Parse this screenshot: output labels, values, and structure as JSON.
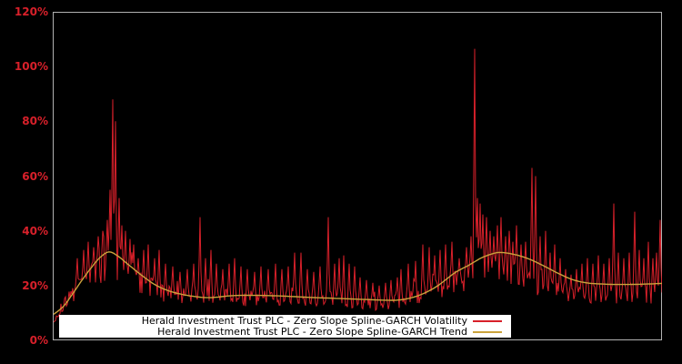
{
  "figure": {
    "background_color": "#000000",
    "frame_color": "#b2b2b2",
    "tick_label_color": "#d8202a"
  },
  "y_axis": {
    "unit": "%",
    "min": 0,
    "max": 120,
    "step": 20,
    "tick_labels_top_down": [
      "120%",
      "100%",
      "80%",
      "60%",
      "40%",
      "20%",
      "0%"
    ]
  },
  "x_axis": {
    "tick_labels": [],
    "note": "no visible x-axis tick labels"
  },
  "legend": {
    "background_color": "#ffffff",
    "text_color": "#000000",
    "entries": [
      {
        "label": "Herald Investment Trust PLC - Zero Slope Spline-GARCH Volatility",
        "color": "#d8202a"
      },
      {
        "label": "Herald Investment Trust PLC - Zero Slope Spline-GARCH Trend",
        "color": "#cba33c"
      }
    ]
  },
  "chart_data": {
    "type": "line",
    "title": "",
    "xlabel": "",
    "ylabel": "",
    "ylim": [
      0,
      120
    ],
    "yticks": [
      0,
      20,
      40,
      60,
      80,
      100,
      120
    ],
    "y_unit": "percent",
    "grid": false,
    "legend_position": "bottom-inside",
    "x_encoding": "fraction 0-1 of the unlabeled time axis",
    "series": [
      {
        "name": "Herald Investment Trust PLC - Zero Slope Spline-GARCH Volatility",
        "color": "#d8202a",
        "style": "noisy",
        "noise_seed": 20,
        "baseline_anchors": [
          [
            0.0,
            6
          ],
          [
            0.006,
            9
          ],
          [
            0.013,
            12
          ],
          [
            0.024,
            15
          ],
          [
            0.034,
            18
          ],
          [
            0.046,
            21
          ],
          [
            0.058,
            23
          ],
          [
            0.07,
            25
          ],
          [
            0.082,
            27
          ],
          [
            0.094,
            29
          ],
          [
            0.106,
            27
          ],
          [
            0.118,
            25
          ],
          [
            0.13,
            23
          ],
          [
            0.142,
            21
          ],
          [
            0.154,
            20
          ],
          [
            0.169,
            18.5
          ],
          [
            0.184,
            17.5
          ],
          [
            0.199,
            17
          ],
          [
            0.218,
            16.5
          ],
          [
            0.241,
            16.5
          ],
          [
            0.263,
            16
          ],
          [
            0.286,
            16
          ],
          [
            0.308,
            15.5
          ],
          [
            0.33,
            15.5
          ],
          [
            0.353,
            15.5
          ],
          [
            0.375,
            15.5
          ],
          [
            0.398,
            16
          ],
          [
            0.42,
            15.5
          ],
          [
            0.442,
            15.5
          ],
          [
            0.465,
            15
          ],
          [
            0.487,
            14.5
          ],
          [
            0.51,
            14
          ],
          [
            0.532,
            13.5
          ],
          [
            0.555,
            14
          ],
          [
            0.577,
            14.5
          ],
          [
            0.599,
            16
          ],
          [
            0.617,
            17.5
          ],
          [
            0.635,
            19
          ],
          [
            0.653,
            21
          ],
          [
            0.671,
            22
          ],
          [
            0.689,
            25
          ],
          [
            0.707,
            27
          ],
          [
            0.725,
            26
          ],
          [
            0.743,
            25
          ],
          [
            0.761,
            24
          ],
          [
            0.779,
            23
          ],
          [
            0.797,
            21
          ],
          [
            0.815,
            19
          ],
          [
            0.833,
            17.5
          ],
          [
            0.851,
            16.5
          ],
          [
            0.868,
            16.5
          ],
          [
            0.886,
            16.5
          ],
          [
            0.904,
            16.5
          ],
          [
            0.922,
            16.5
          ],
          [
            0.943,
            16.5
          ],
          [
            0.964,
            17
          ],
          [
            0.982,
            17
          ],
          [
            1.0,
            19
          ]
        ],
        "noise_amplitude_anchors": [
          [
            0.0,
            1.5
          ],
          [
            0.024,
            3
          ],
          [
            0.054,
            5
          ],
          [
            0.084,
            6.5
          ],
          [
            0.106,
            6
          ],
          [
            0.129,
            5
          ],
          [
            0.151,
            4.5
          ],
          [
            0.181,
            4
          ],
          [
            0.211,
            3.5
          ],
          [
            0.256,
            3.2
          ],
          [
            0.3,
            3.2
          ],
          [
            0.36,
            3.2
          ],
          [
            0.42,
            3.2
          ],
          [
            0.48,
            3
          ],
          [
            0.54,
            2.8
          ],
          [
            0.584,
            3.2
          ],
          [
            0.629,
            4
          ],
          [
            0.667,
            5
          ],
          [
            0.697,
            6.5
          ],
          [
            0.726,
            6.5
          ],
          [
            0.756,
            6
          ],
          [
            0.786,
            5.5
          ],
          [
            0.816,
            4.5
          ],
          [
            0.846,
            3.5
          ],
          [
            0.883,
            3.5
          ],
          [
            0.921,
            3.5
          ],
          [
            0.958,
            3.5
          ],
          [
            1.0,
            4
          ]
        ],
        "spike_points": [
          [
            0.039,
            30
          ],
          [
            0.049,
            33
          ],
          [
            0.057,
            36
          ],
          [
            0.066,
            34
          ],
          [
            0.073,
            38
          ],
          [
            0.081,
            40
          ],
          [
            0.088,
            44
          ],
          [
            0.093,
            55
          ],
          [
            0.097,
            88
          ],
          [
            0.102,
            80
          ],
          [
            0.108,
            52
          ],
          [
            0.112,
            42
          ],
          [
            0.118,
            40
          ],
          [
            0.126,
            37
          ],
          [
            0.132,
            35
          ],
          [
            0.139,
            30
          ],
          [
            0.148,
            33
          ],
          [
            0.155,
            35
          ],
          [
            0.166,
            30
          ],
          [
            0.173,
            33
          ],
          [
            0.184,
            28
          ],
          [
            0.196,
            27
          ],
          [
            0.208,
            25
          ],
          [
            0.22,
            26
          ],
          [
            0.23,
            28
          ],
          [
            0.241,
            45
          ],
          [
            0.25,
            30
          ],
          [
            0.259,
            33
          ],
          [
            0.268,
            28
          ],
          [
            0.278,
            26
          ],
          [
            0.289,
            28
          ],
          [
            0.297,
            30
          ],
          [
            0.308,
            27
          ],
          [
            0.318,
            26
          ],
          [
            0.33,
            25
          ],
          [
            0.341,
            27
          ],
          [
            0.353,
            26
          ],
          [
            0.365,
            28
          ],
          [
            0.375,
            26
          ],
          [
            0.386,
            27
          ],
          [
            0.396,
            32
          ],
          [
            0.407,
            32
          ],
          [
            0.417,
            26
          ],
          [
            0.428,
            25
          ],
          [
            0.438,
            27
          ],
          [
            0.451,
            45
          ],
          [
            0.462,
            28
          ],
          [
            0.469,
            30
          ],
          [
            0.477,
            31
          ],
          [
            0.486,
            28
          ],
          [
            0.495,
            27
          ],
          [
            0.504,
            23
          ],
          [
            0.514,
            22
          ],
          [
            0.525,
            21
          ],
          [
            0.535,
            20
          ],
          [
            0.546,
            21
          ],
          [
            0.555,
            22
          ],
          [
            0.565,
            23
          ],
          [
            0.571,
            26
          ],
          [
            0.583,
            28
          ],
          [
            0.595,
            29
          ],
          [
            0.607,
            35
          ],
          [
            0.617,
            34
          ],
          [
            0.626,
            31
          ],
          [
            0.635,
            33
          ],
          [
            0.644,
            35
          ],
          [
            0.655,
            36
          ],
          [
            0.667,
            30
          ],
          [
            0.679,
            34
          ],
          [
            0.686,
            38
          ],
          [
            0.692,
            106.5
          ],
          [
            0.697,
            52
          ],
          [
            0.701,
            50
          ],
          [
            0.706,
            46
          ],
          [
            0.712,
            45
          ],
          [
            0.718,
            40
          ],
          [
            0.723,
            38
          ],
          [
            0.729,
            42
          ],
          [
            0.735,
            45
          ],
          [
            0.743,
            38
          ],
          [
            0.749,
            40
          ],
          [
            0.755,
            36
          ],
          [
            0.761,
            42
          ],
          [
            0.768,
            35
          ],
          [
            0.776,
            36
          ],
          [
            0.786,
            63
          ],
          [
            0.792,
            60
          ],
          [
            0.8,
            38
          ],
          [
            0.809,
            40
          ],
          [
            0.816,
            32
          ],
          [
            0.824,
            35
          ],
          [
            0.833,
            30
          ],
          [
            0.842,
            26
          ],
          [
            0.851,
            24
          ],
          [
            0.86,
            26
          ],
          [
            0.868,
            28
          ],
          [
            0.877,
            30
          ],
          [
            0.886,
            28
          ],
          [
            0.895,
            31
          ],
          [
            0.904,
            28
          ],
          [
            0.913,
            30
          ],
          [
            0.921,
            50
          ],
          [
            0.928,
            32
          ],
          [
            0.937,
            30
          ],
          [
            0.946,
            32
          ],
          [
            0.955,
            47
          ],
          [
            0.963,
            33
          ],
          [
            0.97,
            30
          ],
          [
            0.978,
            36
          ],
          [
            0.985,
            30
          ],
          [
            0.991,
            32
          ],
          [
            0.997,
            44
          ]
        ]
      },
      {
        "name": "Herald Investment Trust PLC - Zero Slope Spline-GARCH Trend",
        "color": "#cba33c",
        "style": "smooth",
        "smooth_anchors": [
          [
            0.0,
            9.5
          ],
          [
            0.016,
            12.4
          ],
          [
            0.031,
            16.9
          ],
          [
            0.046,
            21.8
          ],
          [
            0.061,
            26.3
          ],
          [
            0.076,
            30.2
          ],
          [
            0.091,
            32.3
          ],
          [
            0.106,
            30.7
          ],
          [
            0.121,
            28
          ],
          [
            0.136,
            25.3
          ],
          [
            0.151,
            22.7
          ],
          [
            0.166,
            20.4
          ],
          [
            0.184,
            18.5
          ],
          [
            0.203,
            17.2
          ],
          [
            0.226,
            16.2
          ],
          [
            0.256,
            15.6
          ],
          [
            0.3,
            16.4
          ],
          [
            0.36,
            16.3
          ],
          [
            0.42,
            15.7
          ],
          [
            0.48,
            15.2
          ],
          [
            0.54,
            14.7
          ],
          [
            0.57,
            14.8
          ],
          [
            0.599,
            16.3
          ],
          [
            0.629,
            19.6
          ],
          [
            0.659,
            24.6
          ],
          [
            0.682,
            27.4
          ],
          [
            0.704,
            30.2
          ],
          [
            0.726,
            31.9
          ],
          [
            0.741,
            32.0
          ],
          [
            0.764,
            31.0
          ],
          [
            0.786,
            29.3
          ],
          [
            0.809,
            26.8
          ],
          [
            0.831,
            24.3
          ],
          [
            0.854,
            22.1
          ],
          [
            0.876,
            21.0
          ],
          [
            0.898,
            20.6
          ],
          [
            0.928,
            20.4
          ],
          [
            0.966,
            20.5
          ],
          [
            1.0,
            20.8
          ]
        ]
      }
    ]
  }
}
